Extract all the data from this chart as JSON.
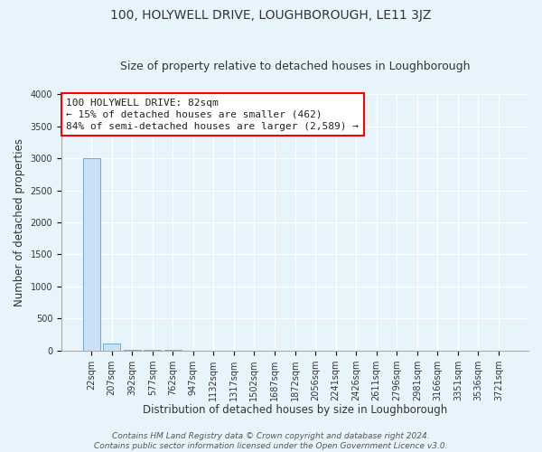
{
  "title": "100, HOLYWELL DRIVE, LOUGHBOROUGH, LE11 3JZ",
  "subtitle": "Size of property relative to detached houses in Loughborough",
  "xlabel": "Distribution of detached houses by size in Loughborough",
  "ylabel": "Number of detached properties",
  "categories": [
    "22sqm",
    "207sqm",
    "392sqm",
    "577sqm",
    "762sqm",
    "947sqm",
    "1132sqm",
    "1317sqm",
    "1502sqm",
    "1687sqm",
    "1872sqm",
    "2056sqm",
    "2241sqm",
    "2426sqm",
    "2611sqm",
    "2796sqm",
    "2981sqm",
    "3166sqm",
    "3351sqm",
    "3536sqm",
    "3721sqm"
  ],
  "values": [
    3000,
    110,
    5,
    2,
    2,
    1,
    1,
    1,
    1,
    1,
    1,
    1,
    1,
    1,
    1,
    1,
    1,
    1,
    1,
    1,
    1
  ],
  "bar_color": "#cce0f5",
  "bar_edge_color": "#6baed6",
  "ylim": [
    0,
    4000
  ],
  "yticks": [
    0,
    500,
    1000,
    1500,
    2000,
    2500,
    3000,
    3500,
    4000
  ],
  "annotation_line1": "100 HOLYWELL DRIVE: 82sqm",
  "annotation_line2": "← 15% of detached houses are smaller (462)",
  "annotation_line3": "84% of semi-detached houses are larger (2,589) →",
  "footer_line1": "Contains HM Land Registry data © Crown copyright and database right 2024.",
  "footer_line2": "Contains public sector information licensed under the Open Government Licence v3.0.",
  "background_color": "#e8f4fb",
  "plot_bg_color": "#e8f4fb",
  "grid_color": "#ffffff",
  "title_fontsize": 10,
  "subtitle_fontsize": 9,
  "label_fontsize": 8.5,
  "tick_fontsize": 7,
  "footer_fontsize": 6.5,
  "annotation_fontsize": 8
}
